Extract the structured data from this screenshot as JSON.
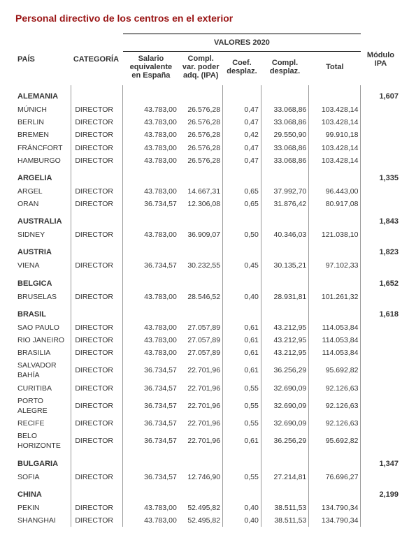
{
  "title": "Personal directivo de los centros en el exterior",
  "headers": {
    "pais": "PAÍS",
    "categoria": "CATEGORÍA",
    "valores": "VALORES 2020",
    "salario": "Salario equivalente en España",
    "compl_var": "Compl. var. poder adq. (IPA)",
    "coef": "Coef. desplaz.",
    "compl_desp": "Compl. desplaz.",
    "total": "Total",
    "modulo": "Módulo IPA"
  },
  "countries": [
    {
      "name": "ALEMANIA",
      "ipa": "1,607",
      "rows": [
        {
          "city": "MÚNICH",
          "cat": "DIRECTOR",
          "sal": "43.783,00",
          "cv": "26.576,28",
          "coef": "0,47",
          "cd": "33.068,86",
          "tot": "103.428,14"
        },
        {
          "city": "BERLIN",
          "cat": "DIRECTOR",
          "sal": "43.783,00",
          "cv": "26.576,28",
          "coef": "0,47",
          "cd": "33.068,86",
          "tot": "103.428,14"
        },
        {
          "city": "BREMEN",
          "cat": "DIRECTOR",
          "sal": "43.783,00",
          "cv": "26.576,28",
          "coef": "0,42",
          "cd": "29.550,90",
          "tot": "99.910,18"
        },
        {
          "city": "FRÁNCFORT",
          "cat": "DIRECTOR",
          "sal": "43.783,00",
          "cv": "26.576,28",
          "coef": "0,47",
          "cd": "33.068,86",
          "tot": "103.428,14"
        },
        {
          "city": "HAMBURGO",
          "cat": "DIRECTOR",
          "sal": "43.783,00",
          "cv": "26.576,28",
          "coef": "0,47",
          "cd": "33.068,86",
          "tot": "103.428,14"
        }
      ]
    },
    {
      "name": "ARGELIA",
      "ipa": "1,335",
      "rows": [
        {
          "city": "ARGEL",
          "cat": "DIRECTOR",
          "sal": "43.783,00",
          "cv": "14.667,31",
          "coef": "0,65",
          "cd": "37.992,70",
          "tot": "96.443,00"
        },
        {
          "city": "ORAN",
          "cat": "DIRECTOR",
          "sal": "36.734,57",
          "cv": "12.306,08",
          "coef": "0,65",
          "cd": "31.876,42",
          "tot": "80.917,08"
        }
      ]
    },
    {
      "name": "AUSTRALIA",
      "ipa": "1,843",
      "rows": [
        {
          "city": "SIDNEY",
          "cat": "DIRECTOR",
          "sal": "43.783,00",
          "cv": "36.909,07",
          "coef": "0,50",
          "cd": "40.346,03",
          "tot": "121.038,10"
        }
      ]
    },
    {
      "name": "AUSTRIA",
      "ipa": "1,823",
      "rows": [
        {
          "city": "VIENA",
          "cat": "DIRECTOR",
          "sal": "36.734,57",
          "cv": "30.232,55",
          "coef": "0,45",
          "cd": "30.135,21",
          "tot": "97.102,33"
        }
      ]
    },
    {
      "name": "BELGICA",
      "ipa": "1,652",
      "rows": [
        {
          "city": "BRUSELAS",
          "cat": "DIRECTOR",
          "sal": "43.783,00",
          "cv": "28.546,52",
          "coef": "0,40",
          "cd": "28.931,81",
          "tot": "101.261,32"
        }
      ]
    },
    {
      "name": "BRASIL",
      "ipa": "1,618",
      "rows": [
        {
          "city": "SAO PAULO",
          "cat": "DIRECTOR",
          "sal": "43.783,00",
          "cv": "27.057,89",
          "coef": "0,61",
          "cd": "43.212,95",
          "tot": "114.053,84"
        },
        {
          "city": "RIO JANEIRO",
          "cat": "DIRECTOR",
          "sal": "43.783,00",
          "cv": "27.057,89",
          "coef": "0,61",
          "cd": "43.212,95",
          "tot": "114.053,84"
        },
        {
          "city": "BRASILIA",
          "cat": "DIRECTOR",
          "sal": "43.783,00",
          "cv": "27.057,89",
          "coef": "0,61",
          "cd": "43.212,95",
          "tot": "114.053,84"
        },
        {
          "city": "SALVADOR BAHÍA",
          "cat": "DIRECTOR",
          "sal": "36.734,57",
          "cv": "22.701,96",
          "coef": "0,61",
          "cd": "36.256,29",
          "tot": "95.692,82"
        },
        {
          "city": "CURITIBA",
          "cat": "DIRECTOR",
          "sal": "36.734,57",
          "cv": "22.701,96",
          "coef": "0,55",
          "cd": "32.690,09",
          "tot": "92.126,63"
        },
        {
          "city": "PORTO ALEGRE",
          "cat": "DIRECTOR",
          "sal": "36.734,57",
          "cv": "22.701,96",
          "coef": "0,55",
          "cd": "32.690,09",
          "tot": "92.126,63"
        },
        {
          "city": "RECIFE",
          "cat": "DIRECTOR",
          "sal": "36.734,57",
          "cv": "22.701,96",
          "coef": "0,55",
          "cd": "32.690,09",
          "tot": "92.126,63"
        },
        {
          "city": "BELO HORIZONTE",
          "cat": "DIRECTOR",
          "sal": "36.734,57",
          "cv": "22.701,96",
          "coef": "0,61",
          "cd": "36.256,29",
          "tot": "95.692,82"
        }
      ]
    },
    {
      "name": "BULGARIA",
      "ipa": "1,347",
      "rows": [
        {
          "city": "SOFIA",
          "cat": "DIRECTOR",
          "sal": "36.734,57",
          "cv": "12.746,90",
          "coef": "0,55",
          "cd": "27.214,81",
          "tot": "76.696,27"
        }
      ]
    },
    {
      "name": "CHINA",
      "ipa": "2,199",
      "rows": [
        {
          "city": "PEKIN",
          "cat": "DIRECTOR",
          "sal": "43.783,00",
          "cv": "52.495,82",
          "coef": "0,40",
          "cd": "38.511,53",
          "tot": "134.790,34"
        },
        {
          "city": "SHANGHAI",
          "cat": "DIRECTOR",
          "sal": "43.783,00",
          "cv": "52.495,82",
          "coef": "0,40",
          "cd": "38.511,53",
          "tot": "134.790,34"
        }
      ]
    }
  ]
}
